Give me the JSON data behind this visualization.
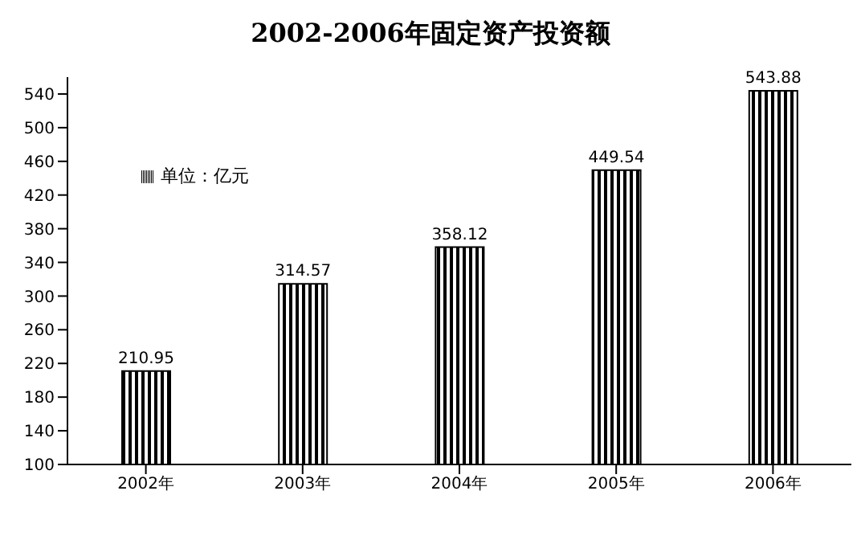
{
  "chart_data": {
    "type": "bar",
    "title": "2002-2006年固定资产投资额",
    "categories": [
      "2002年",
      "2003年",
      "2004年",
      "2005年",
      "2006年"
    ],
    "series": [
      {
        "name": "单位：亿元",
        "color": "#000000",
        "values": [
          210.95,
          314.57,
          358.12,
          449.54,
          543.88
        ]
      }
    ],
    "ylim": [
      100,
      560
    ],
    "yticks": [
      100,
      140,
      180,
      220,
      260,
      300,
      340,
      380,
      420,
      460,
      500,
      540
    ],
    "data_labels": true,
    "legend": "top left",
    "grid": false
  }
}
